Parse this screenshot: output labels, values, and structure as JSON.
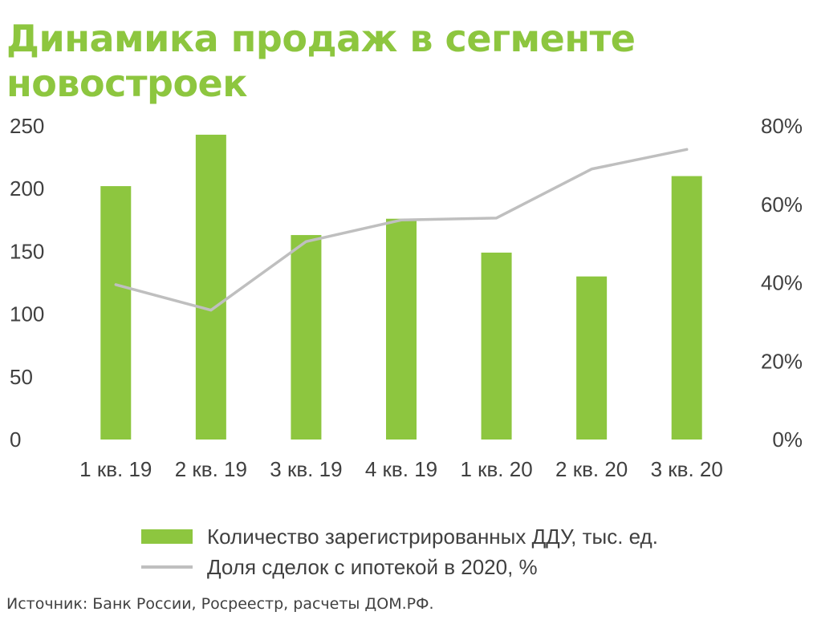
{
  "title": "Динамика продаж в сегменте новостроек",
  "source": "Источник: Банк России, Росреестр, расчеты ДОМ.РФ.",
  "colors": {
    "title": "#8dc63f",
    "bar": "#8dc63f",
    "line": "#bfbfbf",
    "text": "#404040"
  },
  "chart_data": {
    "type": "bar",
    "categories": [
      "1 кв. 19",
      "2 кв. 19",
      "3 кв. 19",
      "4 кв. 19",
      "1 кв. 20",
      "2 кв. 20",
      "3 кв. 20"
    ],
    "series": [
      {
        "name": "Количество зарегистрированных ДДУ, тыс. ед.",
        "type": "bar",
        "axis": "left",
        "values": [
          202,
          243,
          163,
          176,
          149,
          130,
          210
        ]
      },
      {
        "name": "Доля сделок с ипотекой в 2020, %",
        "type": "line",
        "axis": "right",
        "values": [
          0.395,
          0.33,
          0.505,
          0.56,
          0.565,
          0.69,
          0.74
        ]
      }
    ],
    "ylim_left": [
      0,
      250
    ],
    "yticks_left": [
      "0",
      "50",
      "100",
      "150",
      "200",
      "250"
    ],
    "ylim_right": [
      0,
      0.8
    ],
    "yticks_right": [
      "0%",
      "20%",
      "40%",
      "60%",
      "80%"
    ],
    "grid": false,
    "legend_position": "bottom"
  }
}
